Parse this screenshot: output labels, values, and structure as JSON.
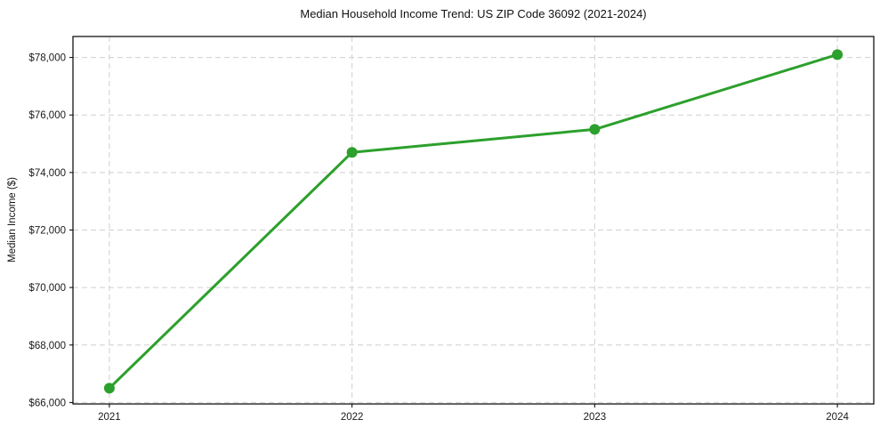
{
  "chart_data": {
    "type": "line",
    "title": "Median Household Income Trend: US ZIP Code 36092 (2021-2024)",
    "xlabel": "",
    "ylabel": "Median Income ($)",
    "x": [
      2021,
      2022,
      2023,
      2024
    ],
    "x_tick_labels": [
      "2021",
      "2022",
      "2023",
      "2024"
    ],
    "series": [
      {
        "name": "median-household-income",
        "values": [
          66500,
          74700,
          75500,
          78100
        ]
      }
    ],
    "yticks": [
      66000,
      68000,
      70000,
      72000,
      74000,
      76000,
      78000
    ],
    "ytick_labels": [
      "$66,000",
      "$68,000",
      "$70,000",
      "$72,000",
      "$74,000",
      "$76,000",
      "$78,000"
    ],
    "xlim": [
      2020.85,
      2024.15
    ],
    "ylim": [
      65950,
      78730
    ],
    "grid": true,
    "legend_position": "none",
    "marker": "circle",
    "colors": {
      "line": "#2ca02c",
      "marker": "#2ca02c",
      "grid": "#cfcfcf",
      "axis": "#000000",
      "tick_text": "#1a1a1a",
      "background": "#ffffff"
    }
  }
}
